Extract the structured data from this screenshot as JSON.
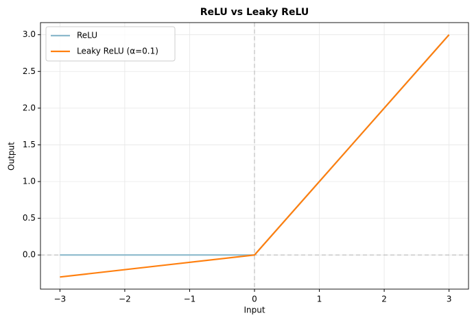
{
  "chart_data": {
    "type": "line",
    "title": "ReLU vs Leaky ReLU",
    "x_label": "Input",
    "y_label": "Output",
    "x": [
      -3,
      0,
      3
    ],
    "series": [
      {
        "name": "ReLU",
        "color": "#8bb9cc",
        "values": [
          0,
          0,
          3
        ]
      },
      {
        "name": "Leaky ReLU (α=0.1)",
        "color": "#ff7f0e",
        "values": [
          -0.3,
          0,
          3
        ]
      }
    ],
    "xlim": [
      -3.3,
      3.3
    ],
    "ylim": [
      -0.465,
      3.165
    ],
    "xticks": [
      {
        "value": -3,
        "label": "−3"
      },
      {
        "value": -2,
        "label": "−2"
      },
      {
        "value": -1,
        "label": "−1"
      },
      0,
      1,
      2,
      3
    ],
    "yticks": [
      {
        "value": 0,
        "label": "0.0"
      },
      {
        "value": 0.5,
        "label": "0.5"
      },
      {
        "value": 1,
        "label": "1.0"
      },
      {
        "value": 1.5,
        "label": "1.5"
      },
      {
        "value": 2,
        "label": "2.0"
      },
      {
        "value": 2.5,
        "label": "2.5"
      },
      {
        "value": 3,
        "label": "3.0"
      }
    ],
    "hline": 0,
    "vline": 0,
    "grid": true,
    "legend": "upper-left"
  }
}
